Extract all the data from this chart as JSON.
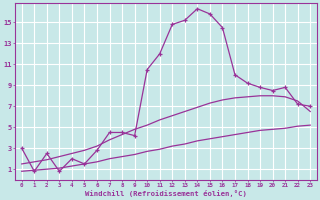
{
  "xlabel": "Windchill (Refroidissement éolien,°C)",
  "bg_color": "#c8e8e8",
  "line_color": "#993399",
  "grid_color": "#ffffff",
  "text_color": "#993399",
  "x_ticks": [
    0,
    1,
    2,
    3,
    4,
    5,
    6,
    7,
    8,
    9,
    10,
    11,
    12,
    13,
    14,
    15,
    16,
    17,
    18,
    19,
    20,
    21,
    22,
    23
  ],
  "y_ticks": [
    1,
    3,
    5,
    7,
    9,
    11,
    13,
    15
  ],
  "ylim": [
    0.0,
    16.8
  ],
  "xlim": [
    -0.5,
    23.5
  ],
  "series1_x": [
    0,
    1,
    2,
    3,
    4,
    5,
    6,
    7,
    8,
    9,
    10,
    11,
    12,
    13,
    14,
    15,
    16,
    17,
    18,
    19,
    20,
    21,
    22,
    23
  ],
  "series1_y": [
    3.0,
    0.8,
    2.5,
    0.8,
    2.0,
    1.5,
    2.8,
    4.5,
    4.5,
    4.2,
    10.5,
    12.0,
    14.8,
    15.2,
    16.3,
    15.8,
    14.5,
    10.0,
    9.2,
    8.8,
    8.5,
    8.8,
    7.2,
    7.0
  ],
  "series2_x": [
    0,
    1,
    2,
    3,
    4,
    5,
    6,
    7,
    8,
    9,
    10,
    11,
    12,
    13,
    14,
    15,
    16,
    17,
    18,
    19,
    20,
    21,
    22,
    23
  ],
  "series2_y": [
    0.8,
    0.9,
    1.0,
    1.1,
    1.3,
    1.5,
    1.7,
    2.0,
    2.2,
    2.4,
    2.7,
    2.9,
    3.2,
    3.4,
    3.7,
    3.9,
    4.1,
    4.3,
    4.5,
    4.7,
    4.8,
    4.9,
    5.1,
    5.2
  ],
  "series3_x": [
    0,
    1,
    2,
    3,
    4,
    5,
    6,
    7,
    8,
    9,
    10,
    11,
    12,
    13,
    14,
    15,
    16,
    17,
    18,
    19,
    20,
    21,
    22,
    23
  ],
  "series3_y": [
    1.5,
    1.7,
    1.9,
    2.2,
    2.5,
    2.8,
    3.2,
    3.8,
    4.3,
    4.8,
    5.2,
    5.7,
    6.1,
    6.5,
    6.9,
    7.3,
    7.6,
    7.8,
    7.9,
    8.0,
    8.0,
    7.9,
    7.5,
    6.5
  ]
}
